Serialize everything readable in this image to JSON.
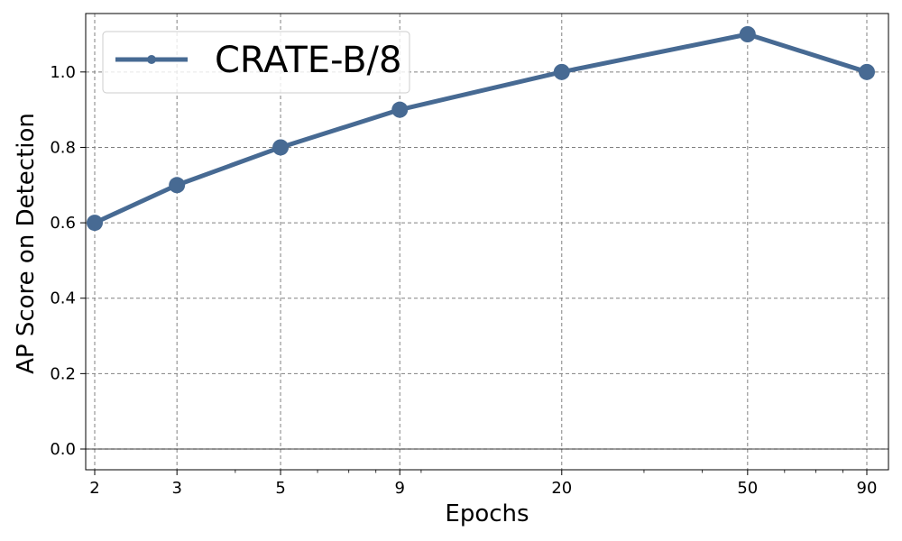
{
  "chart_data": {
    "type": "line",
    "title": "",
    "xlabel": "Epochs",
    "ylabel": "AP Score on Detection",
    "xscale": "log",
    "x": [
      2,
      3,
      5,
      9,
      20,
      50,
      90
    ],
    "xticks": [
      "2",
      "3",
      "5",
      "9",
      "20",
      "50",
      "90"
    ],
    "yticks": [
      "0.0",
      "0.2",
      "0.4",
      "0.6",
      "0.8",
      "1.0"
    ],
    "ylim": [
      -0.055,
      1.155
    ],
    "grid": true,
    "legend_position": "top-left",
    "series": [
      {
        "name": "CRATE-B/8",
        "color": "#476a93",
        "values": [
          0.6,
          0.7,
          0.8,
          0.9,
          1.0,
          1.1,
          1.0
        ]
      }
    ]
  }
}
